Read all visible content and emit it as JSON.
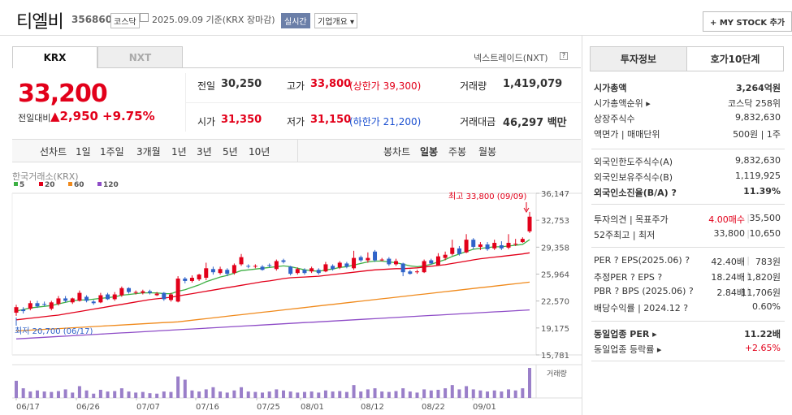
{
  "header": {
    "name": "티엘비",
    "code": "356860",
    "market_badge": "코스닥",
    "date_text": "2025.09.09 기준(KRX 장마감)",
    "realtime_badge": "실시간",
    "overview_badge": "기업개요 ▾",
    "mystock_label": "+ MY STOCK 추가"
  },
  "tabs": {
    "krx": "KRX",
    "nxt": "NXT",
    "nxt_link": "넥스트레이드(NXT)"
  },
  "quote": {
    "price": "33,200",
    "change_label": "전일대비",
    "change": "▲2,950",
    "change_pct": "+9.75%",
    "prev_label": "전일",
    "prev": "30,250",
    "high_label": "고가",
    "high": "33,800",
    "upper_label": "(상한가 39,300)",
    "volume_label": "거래량",
    "volume": "1,419,079",
    "open_label": "시가",
    "open": "31,350",
    "low_label": "저가",
    "low": "31,150",
    "lower_label": "(하한가 21,200)",
    "amount_label": "거래대금",
    "amount": "46,297 백만"
  },
  "toolbar": {
    "line_chart": "선차트",
    "periods": [
      "1일",
      "1주일",
      "3개월",
      "1년",
      "3년",
      "5년",
      "10년"
    ],
    "candle_chart": "봉차트",
    "candles": [
      "일봉",
      "주봉",
      "월봉"
    ]
  },
  "chart_data": {
    "type": "candlestick",
    "source": "한국거래소(KRX)",
    "legend": [
      {
        "name": "5",
        "color": "#3cb043"
      },
      {
        "name": "20",
        "color": "#e2001a"
      },
      {
        "name": "60",
        "color": "#f08a1c"
      },
      {
        "name": "120",
        "color": "#8e4cc7"
      }
    ],
    "y_ticks": [
      "36,147",
      "32,753",
      "29,358",
      "25,964",
      "22,570",
      "19,175",
      "15,781"
    ],
    "ylim": [
      15781,
      36147
    ],
    "x_ticks": [
      "06/17",
      "06/26",
      "07/07",
      "07/16",
      "07/25",
      "08/01",
      "08/12",
      "08/22",
      "09/01"
    ],
    "high_note": "최고 33,800 (09/09)",
    "low_note": "최저 20,700 (06/17)",
    "volume_label": "거래량",
    "candles": [
      {
        "o": 21100,
        "c": 21800,
        "h": 22100,
        "l": 20700
      },
      {
        "o": 21500,
        "c": 21300,
        "h": 21800,
        "l": 21000
      },
      {
        "o": 21600,
        "c": 22300,
        "h": 22600,
        "l": 21400
      },
      {
        "o": 22300,
        "c": 21900,
        "h": 22600,
        "l": 21700
      },
      {
        "o": 22200,
        "c": 22100,
        "h": 22500,
        "l": 21900
      },
      {
        "o": 21600,
        "c": 22400,
        "h": 22600,
        "l": 21400
      },
      {
        "o": 22200,
        "c": 22900,
        "h": 23200,
        "l": 22000
      },
      {
        "o": 22900,
        "c": 22600,
        "h": 23200,
        "l": 22400
      },
      {
        "o": 22400,
        "c": 22900,
        "h": 23000,
        "l": 22200
      },
      {
        "o": 22600,
        "c": 23600,
        "h": 23900,
        "l": 22500
      },
      {
        "o": 23100,
        "c": 22600,
        "h": 23300,
        "l": 22400
      },
      {
        "o": 22500,
        "c": 22300,
        "h": 22700,
        "l": 22100
      },
      {
        "o": 22400,
        "c": 23300,
        "h": 23600,
        "l": 22300
      },
      {
        "o": 23400,
        "c": 22800,
        "h": 23600,
        "l": 22700
      },
      {
        "o": 22800,
        "c": 23400,
        "h": 23700,
        "l": 22600
      },
      {
        "o": 23300,
        "c": 24200,
        "h": 24400,
        "l": 23100
      },
      {
        "o": 24200,
        "c": 23700,
        "h": 24300,
        "l": 23500
      },
      {
        "o": 23600,
        "c": 23700,
        "h": 23900,
        "l": 23400
      },
      {
        "o": 23600,
        "c": 23800,
        "h": 24000,
        "l": 23400
      },
      {
        "o": 23800,
        "c": 23600,
        "h": 24000,
        "l": 23400
      },
      {
        "o": 23300,
        "c": 23500,
        "h": 23700,
        "l": 23200
      },
      {
        "o": 23600,
        "c": 22800,
        "h": 23700,
        "l": 22600
      },
      {
        "o": 22700,
        "c": 23400,
        "h": 23600,
        "l": 22500
      },
      {
        "o": 22500,
        "c": 25400,
        "h": 25700,
        "l": 22400
      },
      {
        "o": 25400,
        "c": 25100,
        "h": 25600,
        "l": 24800
      },
      {
        "o": 25100,
        "c": 25500,
        "h": 25800,
        "l": 24900
      },
      {
        "o": 25300,
        "c": 25900,
        "h": 26000,
        "l": 25100
      },
      {
        "o": 25500,
        "c": 26700,
        "h": 27400,
        "l": 25200
      },
      {
        "o": 26600,
        "c": 26200,
        "h": 26900,
        "l": 25900
      },
      {
        "o": 26100,
        "c": 26600,
        "h": 26900,
        "l": 25900
      },
      {
        "o": 26500,
        "c": 26000,
        "h": 26700,
        "l": 25700
      },
      {
        "o": 26100,
        "c": 27100,
        "h": 27300,
        "l": 25900
      },
      {
        "o": 27200,
        "c": 28100,
        "h": 28500,
        "l": 27000
      },
      {
        "o": 27000,
        "c": 26900,
        "h": 27200,
        "l": 26700
      },
      {
        "o": 26900,
        "c": 27000,
        "h": 27200,
        "l": 26700
      },
      {
        "o": 26900,
        "c": 26500,
        "h": 27100,
        "l": 26400
      },
      {
        "o": 27100,
        "c": 27000,
        "h": 27300,
        "l": 26800
      },
      {
        "o": 26600,
        "c": 27600,
        "h": 27800,
        "l": 26400
      },
      {
        "o": 27700,
        "c": 27500,
        "h": 27900,
        "l": 27300
      },
      {
        "o": 26900,
        "c": 26000,
        "h": 27000,
        "l": 25800
      },
      {
        "o": 26100,
        "c": 26600,
        "h": 26800,
        "l": 25900
      },
      {
        "o": 26500,
        "c": 26100,
        "h": 26700,
        "l": 25900
      },
      {
        "o": 26300,
        "c": 26700,
        "h": 26900,
        "l": 26100
      },
      {
        "o": 26500,
        "c": 26100,
        "h": 26700,
        "l": 25900
      },
      {
        "o": 26300,
        "c": 27200,
        "h": 27500,
        "l": 26200
      },
      {
        "o": 27000,
        "c": 26600,
        "h": 27200,
        "l": 26400
      },
      {
        "o": 26800,
        "c": 27400,
        "h": 27600,
        "l": 26600
      },
      {
        "o": 27300,
        "c": 26900,
        "h": 27500,
        "l": 26700
      },
      {
        "o": 26700,
        "c": 28000,
        "h": 28900,
        "l": 26500
      },
      {
        "o": 28100,
        "c": 27700,
        "h": 28300,
        "l": 27500
      },
      {
        "o": 27700,
        "c": 28000,
        "h": 28700,
        "l": 27400
      },
      {
        "o": 28800,
        "c": 27700,
        "h": 29000,
        "l": 27500
      },
      {
        "o": 27800,
        "c": 27800,
        "h": 28000,
        "l": 27600
      },
      {
        "o": 27900,
        "c": 27200,
        "h": 28100,
        "l": 27000
      },
      {
        "o": 27200,
        "c": 27600,
        "h": 27900,
        "l": 27000
      },
      {
        "o": 27300,
        "c": 26200,
        "h": 27400,
        "l": 25700
      },
      {
        "o": 26300,
        "c": 26000,
        "h": 26500,
        "l": 25900
      },
      {
        "o": 26200,
        "c": 26300,
        "h": 26500,
        "l": 26000
      },
      {
        "o": 26200,
        "c": 27600,
        "h": 27800,
        "l": 26100
      },
      {
        "o": 27700,
        "c": 27300,
        "h": 27900,
        "l": 27200
      },
      {
        "o": 27100,
        "c": 28200,
        "h": 28600,
        "l": 27000
      },
      {
        "o": 28000,
        "c": 28400,
        "h": 28800,
        "l": 27700
      },
      {
        "o": 28500,
        "c": 29300,
        "h": 30300,
        "l": 28300
      },
      {
        "o": 29200,
        "c": 28500,
        "h": 29500,
        "l": 28300
      },
      {
        "o": 28700,
        "c": 30300,
        "h": 31000,
        "l": 28600
      },
      {
        "o": 30300,
        "c": 29400,
        "h": 30500,
        "l": 29100
      },
      {
        "o": 29400,
        "c": 29700,
        "h": 30000,
        "l": 29000
      },
      {
        "o": 29700,
        "c": 29100,
        "h": 30000,
        "l": 28900
      },
      {
        "o": 29200,
        "c": 29900,
        "h": 30300,
        "l": 29000
      },
      {
        "o": 29600,
        "c": 29200,
        "h": 30100,
        "l": 29000
      },
      {
        "o": 29300,
        "c": 29900,
        "h": 31000,
        "l": 29100
      },
      {
        "o": 29800,
        "c": 29800,
        "h": 30400,
        "l": 29500
      },
      {
        "o": 30000,
        "c": 30400,
        "h": 30600,
        "l": 29900
      },
      {
        "o": 31350,
        "c": 33200,
        "h": 33800,
        "l": 31150
      }
    ],
    "ma5": [
      21300,
      21500,
      21700,
      21800,
      21900,
      22000,
      22200,
      22400,
      22600,
      22700,
      22700,
      22800,
      22900,
      23000,
      23100,
      23300,
      23400,
      23500,
      23600,
      23600,
      23600,
      23500,
      23500,
      23800,
      24000,
      24300,
      24600,
      25000,
      25300,
      25600,
      25800,
      26100,
      26400,
      26500,
      26600,
      26700,
      26800,
      26900,
      27000,
      26900,
      26700,
      26500,
      26400,
      26300,
      26500,
      26600,
      26800,
      26900,
      27100,
      27300,
      27500,
      27600,
      27600,
      27500,
      27400,
      27200,
      27000,
      26900,
      27000,
      27200,
      27500,
      27800,
      28200,
      28500,
      28800,
      29100,
      29200,
      29300,
      29400,
      29400,
      29500,
      29600,
      29700,
      30300
    ],
    "ma20": [
      20200,
      20300,
      20400,
      20500,
      20600,
      20700,
      20800,
      20950,
      21100,
      21250,
      21400,
      21550,
      21700,
      21850,
      22000,
      22150,
      22300,
      22450,
      22600,
      22750,
      22850,
      22950,
      23050,
      23200,
      23350,
      23500,
      23650,
      23800,
      23950,
      24100,
      24250,
      24400,
      24550,
      24700,
      24850,
      25000,
      25100,
      25250,
      25400,
      25500,
      25550,
      25600,
      25650,
      25700,
      25800,
      25900,
      26000,
      26100,
      26200,
      26300,
      26400,
      26500,
      26550,
      26600,
      26650,
      26650,
      26700,
      26750,
      26850,
      26950,
      27050,
      27150,
      27300,
      27450,
      27600,
      27750,
      27900,
      28000,
      28100,
      28200,
      28300,
      28400,
      28500,
      28650
    ],
    "ma60": [
      18800,
      18850,
      18900,
      18950,
      19000,
      19050,
      19100,
      19150,
      19200,
      19250,
      19300,
      19350,
      19400,
      19450,
      19500,
      19550,
      19600,
      19650,
      19700,
      19750,
      19800,
      19850,
      19900,
      19950,
      20050,
      20150,
      20250,
      20350,
      20450,
      20550,
      20650,
      20750,
      20850,
      20950,
      21050,
      21150,
      21250,
      21350,
      21450,
      21550,
      21650,
      21750,
      21850,
      21950,
      22050,
      22150,
      22250,
      22350,
      22450,
      22550,
      22650,
      22750,
      22850,
      22950,
      23050,
      23150,
      23250,
      23350,
      23450,
      23550,
      23650,
      23750,
      23850,
      23950,
      24050,
      24150,
      24250,
      24350,
      24450,
      24550,
      24650,
      24750,
      24850,
      24950
    ],
    "ma120": [
      17800,
      17850,
      17900,
      17950,
      18000,
      18050,
      18100,
      18150,
      18200,
      18250,
      18300,
      18350,
      18400,
      18450,
      18500,
      18550,
      18600,
      18650,
      18700,
      18750,
      18800,
      18850,
      18900,
      18950,
      19000,
      19050,
      19100,
      19150,
      19200,
      19250,
      19300,
      19350,
      19400,
      19450,
      19500,
      19550,
      19600,
      19650,
      19700,
      19750,
      19800,
      19850,
      19900,
      19950,
      20000,
      20050,
      20100,
      20150,
      20200,
      20250,
      20300,
      20350,
      20400,
      20450,
      20500,
      20550,
      20600,
      20650,
      20700,
      20750,
      20800,
      20850,
      20900,
      20950,
      21000,
      21050,
      21100,
      21150,
      21200,
      21250,
      21300,
      21350,
      21400,
      21450
    ],
    "volumes": [
      80,
      45,
      30,
      35,
      30,
      28,
      32,
      40,
      25,
      55,
      35,
      20,
      38,
      30,
      32,
      45,
      30,
      25,
      28,
      22,
      20,
      30,
      28,
      100,
      85,
      35,
      30,
      40,
      50,
      30,
      25,
      35,
      50,
      30,
      28,
      25,
      30,
      40,
      35,
      30,
      25,
      28,
      30,
      25,
      35,
      30,
      32,
      28,
      60,
      30,
      40,
      45,
      30,
      28,
      32,
      45,
      30,
      25,
      40,
      35,
      38,
      45,
      60,
      40,
      55,
      40,
      35,
      30,
      35,
      30,
      40,
      35,
      45,
      140
    ]
  },
  "info": {
    "tab_invest": "투자정보",
    "tab_quote": "호가10단계",
    "rows1": [
      {
        "k": "시가총액",
        "v": "3,264억원"
      },
      {
        "k": "시가총액순위 ▸",
        "v": "코스닥 258위"
      },
      {
        "k": "상장주식수",
        "v": "9,832,630"
      },
      {
        "k": "액면가 | 매매단위",
        "v": "500원 | 1주"
      }
    ],
    "rows2": [
      {
        "k": "외국인한도주식수(A)",
        "v": "9,832,630"
      },
      {
        "k": "외국인보유주식수(B)",
        "v": "1,119,925"
      },
      {
        "k": "외국인소진율(B/A) ?",
        "v": "11.39%"
      }
    ],
    "rows3": [
      {
        "k": "투자의견 | 목표주가",
        "v1": "4.00매수",
        "v2": "35,500"
      },
      {
        "k": "52주최고 | 최저",
        "v1": "33,800",
        "v2": "10,650"
      }
    ],
    "rows4": [
      {
        "k": "PER ? EPS(2025.06) ?",
        "v1": "42.40배",
        "v2": "783원"
      },
      {
        "k": "추정PER ? EPS ?",
        "v1": "18.24배",
        "v2": "1,820원"
      },
      {
        "k": "PBR ? BPS (2025.06) ?",
        "v1": "2.84배",
        "v2": "11,706원"
      },
      {
        "k": "배당수익률 | 2024.12 ?",
        "v": "0.60%"
      }
    ],
    "rows5": [
      {
        "k": "동일업종 PER ▸",
        "v": "11.22배"
      },
      {
        "k": "동일업종 등락률 ▸",
        "v": "+2.65%"
      }
    ]
  }
}
